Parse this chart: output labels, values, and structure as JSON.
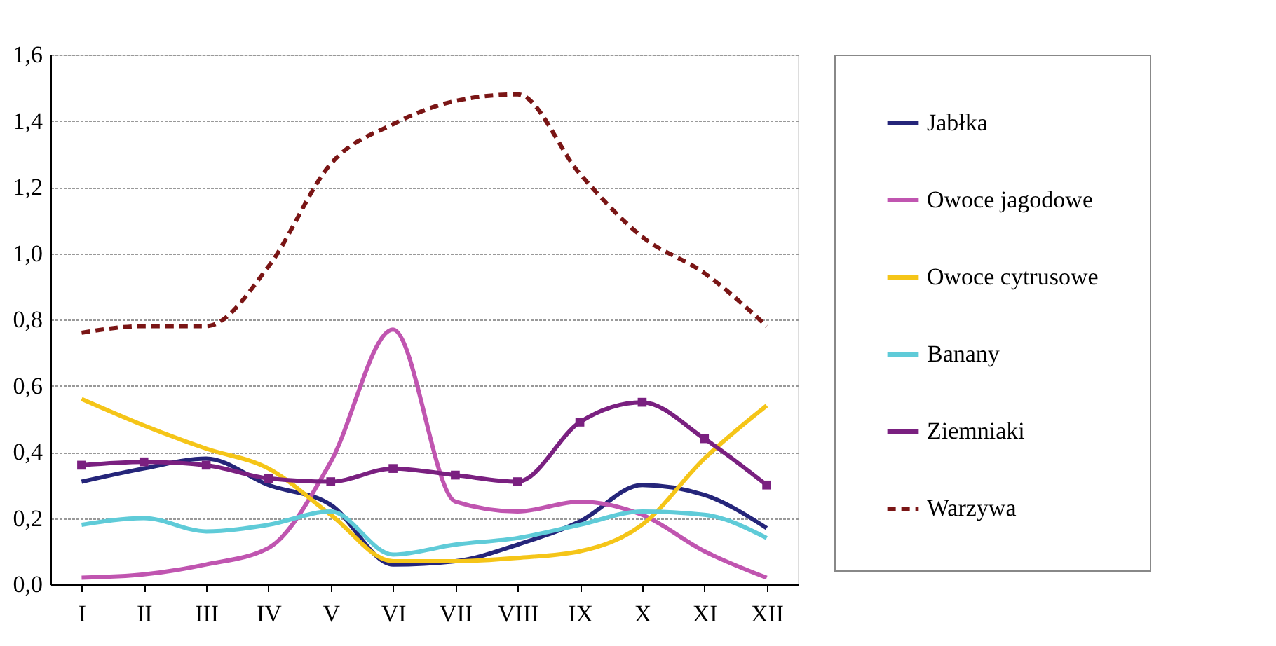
{
  "chart_data": {
    "type": "line",
    "categories": [
      "I",
      "II",
      "III",
      "IV",
      "V",
      "VI",
      "VII",
      "VIII",
      "IX",
      "X",
      "XI",
      "XII"
    ],
    "ylim": [
      0,
      1.6
    ],
    "yticks": [
      {
        "value": 0,
        "label": "0,0"
      },
      {
        "value": 0.2,
        "label": "0,2"
      },
      {
        "value": 0.4,
        "label": "0,4"
      },
      {
        "value": 0.6,
        "label": "0,6"
      },
      {
        "value": 0.8,
        "label": "0,8"
      },
      {
        "value": 1.0,
        "label": "1,0"
      },
      {
        "value": 1.2,
        "label": "1,2"
      },
      {
        "value": 1.4,
        "label": "1,4"
      },
      {
        "value": 1.6,
        "label": "1,6"
      }
    ],
    "grid": "y",
    "legend": "right",
    "series": [
      {
        "name": "Jabłka",
        "color": "#25257a",
        "line_style": "solid",
        "marker": "none",
        "values": [
          0.31,
          0.35,
          0.38,
          0.3,
          0.24,
          0.06,
          0.07,
          0.12,
          0.19,
          0.3,
          0.27,
          0.17
        ]
      },
      {
        "name": "Owoce jagodowe",
        "color": "#c055b0",
        "line_style": "solid",
        "marker": "none",
        "values": [
          0.02,
          0.03,
          0.06,
          0.11,
          0.37,
          0.77,
          0.25,
          0.22,
          0.25,
          0.21,
          0.1,
          0.02
        ]
      },
      {
        "name": "Owoce cytrusowe",
        "color": "#f5c518",
        "line_style": "solid",
        "marker": "none",
        "values": [
          0.56,
          0.48,
          0.41,
          0.35,
          0.21,
          0.07,
          0.07,
          0.08,
          0.1,
          0.18,
          0.38,
          0.54
        ]
      },
      {
        "name": "Banany",
        "color": "#5fcbd8",
        "line_style": "solid",
        "marker": "none",
        "values": [
          0.18,
          0.2,
          0.16,
          0.18,
          0.22,
          0.09,
          0.12,
          0.14,
          0.18,
          0.22,
          0.21,
          0.14
        ]
      },
      {
        "name": "Ziemniaki",
        "color": "#7a2080",
        "line_style": "solid",
        "marker": "square",
        "values": [
          0.36,
          0.37,
          0.36,
          0.32,
          0.31,
          0.35,
          0.33,
          0.31,
          0.49,
          0.55,
          0.44,
          0.3
        ]
      },
      {
        "name": "Warzywa",
        "color": "#7a1515",
        "line_style": "dashed",
        "marker": "none",
        "values": [
          0.76,
          0.78,
          0.78,
          0.96,
          1.27,
          1.39,
          1.46,
          1.48,
          1.24,
          1.05,
          0.94,
          0.78
        ]
      }
    ]
  }
}
